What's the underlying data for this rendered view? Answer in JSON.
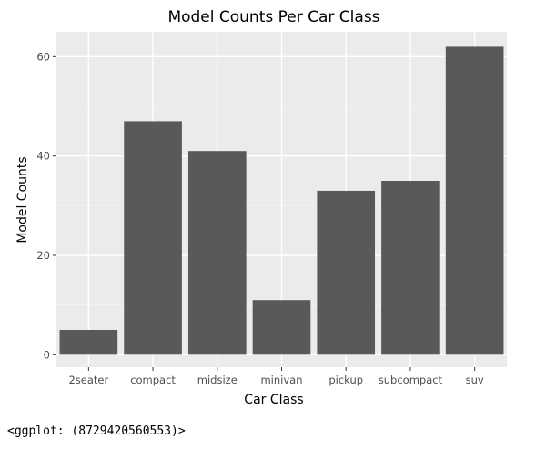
{
  "chart_data": {
    "type": "bar",
    "title": "Model Counts Per Car Class",
    "xlabel": "Car Class",
    "ylabel": "Model Counts",
    "categories": [
      "2seater",
      "compact",
      "midsize",
      "minivan",
      "pickup",
      "subcompact",
      "suv"
    ],
    "values": [
      5,
      47,
      41,
      11,
      33,
      35,
      62
    ],
    "ylim": [
      -2.5,
      65
    ],
    "yticks": [
      0,
      20,
      40,
      60
    ],
    "grid": true,
    "colors": {
      "bar": "#595959",
      "panel": "#ebebeb",
      "grid_major": "#ffffff",
      "grid_minor": "#f5f5f5",
      "tick_text": "#4d4d4d"
    }
  },
  "console": {
    "output": "<ggplot: (8729420560553)>"
  }
}
